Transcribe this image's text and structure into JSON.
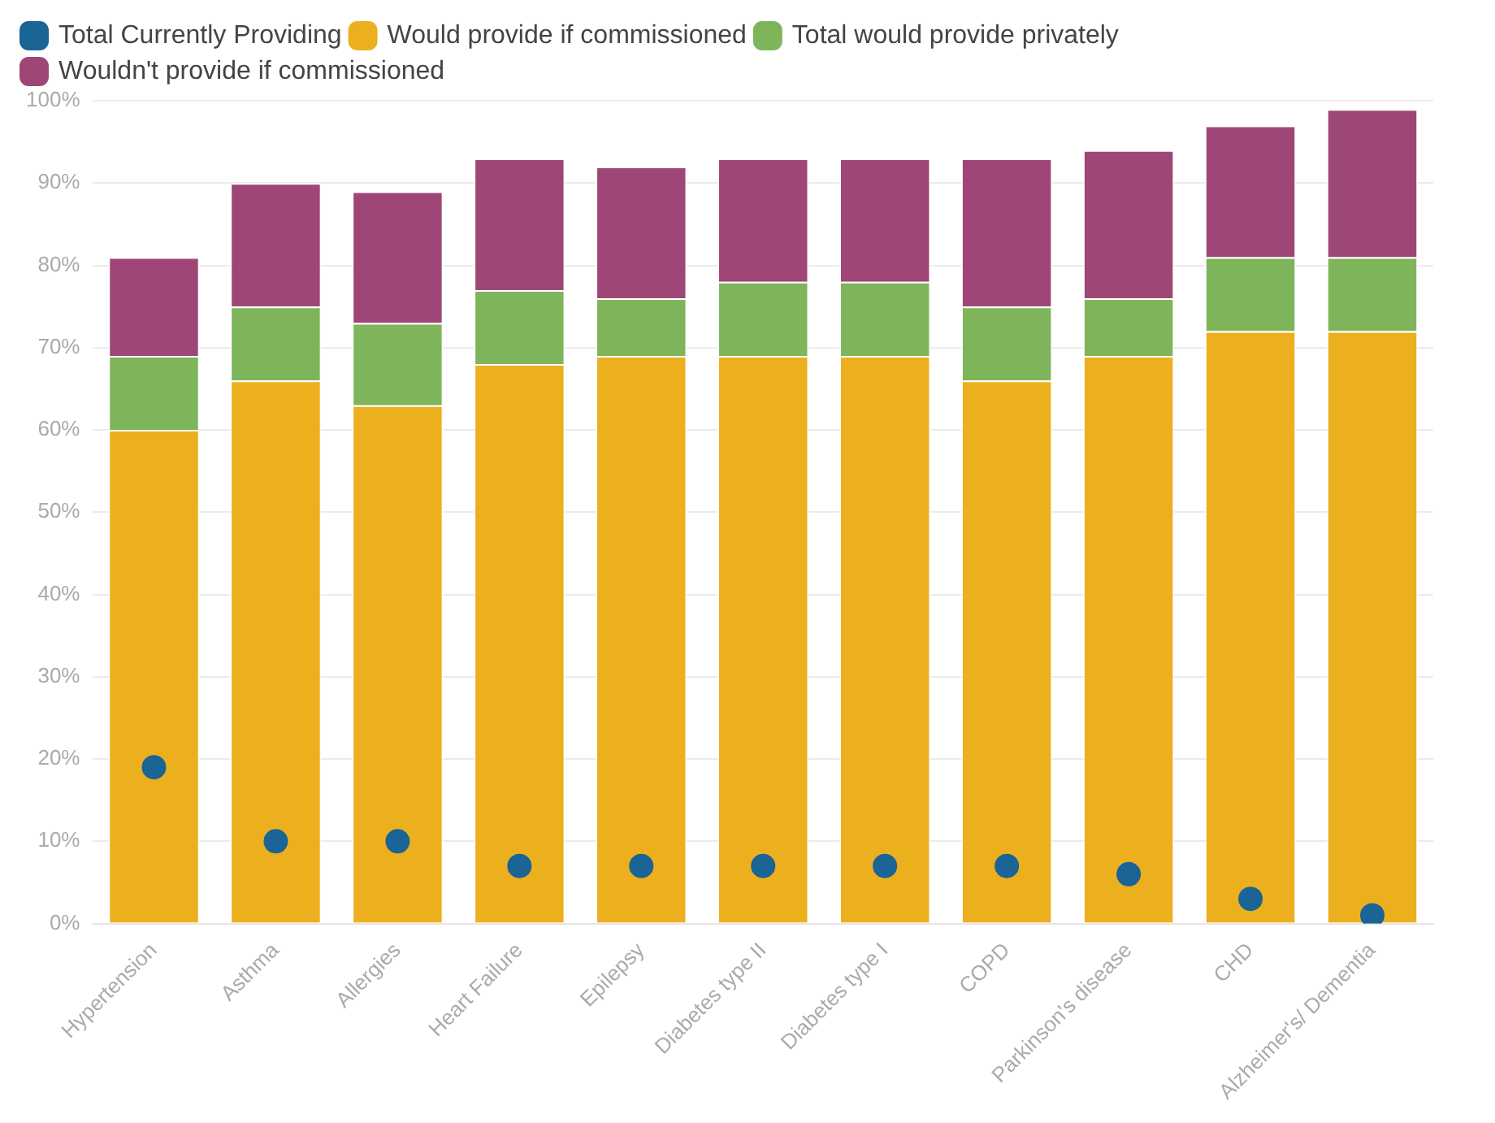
{
  "chart_data": {
    "type": "bar",
    "stacked": true,
    "categories": [
      "Hypertension",
      "Asthma",
      "Allergies",
      "Heart Failure",
      "Epilepsy",
      "Diabetes type II",
      "Diabetes type I",
      "COPD",
      "Parkinson's disease",
      "CHD",
      "Alzheimer's/ Dementia"
    ],
    "series": [
      {
        "name": "Total Currently Providing",
        "type": "scatter",
        "color": "#1a6496",
        "x": [
          "Hypertension",
          "Asthma",
          "Allergies",
          "Heart Failure",
          "Epilepsy",
          "Diabetes type II",
          "Diabetes type I",
          "COPD",
          "Parkinson's disease",
          "CHD",
          "Alzheimer's/ Dementia"
        ],
        "values": [
          19,
          10,
          10,
          7,
          7,
          7,
          7,
          7,
          6,
          3,
          1
        ]
      },
      {
        "name": "Would provide if commissioned",
        "color": "#ecb01f",
        "values": [
          60,
          66,
          63,
          68,
          69,
          69,
          69,
          66,
          69,
          72,
          72
        ]
      },
      {
        "name": "Total would provide privately",
        "color": "#7fb55a",
        "values": [
          9,
          9,
          10,
          9,
          7,
          9,
          9,
          9,
          7,
          9,
          9
        ]
      },
      {
        "name": "Wouldn't provide if commissioned",
        "color": "#9e4676",
        "values": [
          12,
          15,
          16,
          16,
          16,
          15,
          15,
          18,
          18,
          16,
          18
        ]
      }
    ],
    "ylim": [
      0,
      100
    ],
    "yticks": [
      {
        "value": 0,
        "label": "0%"
      },
      {
        "value": 10,
        "label": "10%"
      },
      {
        "value": 20,
        "label": "20%"
      },
      {
        "value": 30,
        "label": "30%"
      },
      {
        "value": 40,
        "label": "40%"
      },
      {
        "value": 50,
        "label": "50%"
      },
      {
        "value": 60,
        "label": "60%"
      },
      {
        "value": 70,
        "label": "70%"
      },
      {
        "value": 80,
        "label": "80%"
      },
      {
        "value": 90,
        "label": "90%"
      },
      {
        "value": 100,
        "label": "100%"
      }
    ],
    "grid": "y",
    "legend": "top left",
    "marker": "circle"
  }
}
